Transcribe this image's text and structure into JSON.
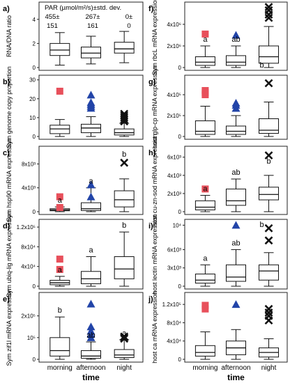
{
  "chart_data": {
    "type": "box",
    "x_categories": [
      "morning",
      "afternoon",
      "night"
    ],
    "x_axis_label": "time",
    "series_markers": [
      {
        "time": "morning",
        "marker": "square",
        "color": "#e8505b"
      },
      {
        "time": "afternoon",
        "marker": "triangle",
        "color": "#2244a8"
      },
      {
        "time": "night",
        "marker": "x",
        "color": "#111111"
      }
    ],
    "par_header": {
      "title": "PAR (µmol/m²/s)±std. dev.",
      "morning": [
        "455±",
        "151"
      ],
      "afternoon": [
        "267±",
        "161"
      ],
      "night": [
        "0±",
        "0"
      ]
    },
    "panels": [
      {
        "id": "a)",
        "ylabel": "RNA/DNA ratio",
        "yticks": [
          "0",
          "2",
          "4"
        ],
        "ylim": [
          0,
          5.2
        ],
        "boxes": [
          {
            "whislo": 0.2,
            "q1": 1.0,
            "med": 1.45,
            "q3": 2.0,
            "whishi": 2.9,
            "outliers": []
          },
          {
            "whislo": 0.3,
            "q1": 0.8,
            "med": 1.2,
            "q3": 1.7,
            "whishi": 2.6,
            "outliers": []
          },
          {
            "whislo": 0.4,
            "q1": 1.2,
            "med": 1.55,
            "q3": 2.1,
            "whishi": 3.0,
            "outliers": []
          }
        ],
        "letters": [
          "",
          "",
          ""
        ]
      },
      {
        "id": "b)",
        "ylabel": "Sym genome copy proportion",
        "yticks": [
          "0",
          "10",
          "20",
          "30"
        ],
        "ylim": [
          0,
          31
        ],
        "boxes": [
          {
            "whislo": 0,
            "q1": 1.5,
            "med": 4.0,
            "q3": 6.0,
            "whishi": 9.0,
            "outliers": [
              24
            ]
          },
          {
            "whislo": 0,
            "q1": 2.0,
            "med": 4.5,
            "q3": 6.5,
            "whishi": 10.5,
            "outliers": [
              15,
              16,
              17,
              18,
              22
            ]
          },
          {
            "whislo": 0,
            "q1": 0.8,
            "med": 2.0,
            "q3": 4.0,
            "whishi": 7.0,
            "outliers": [
              8,
              9,
              10,
              11,
              12
            ]
          }
        ],
        "letters": [
          "",
          "",
          ""
        ]
      },
      {
        "id": "c)",
        "ylabel": "Sym hsp90 mRNA expression",
        "yticks": [
          "0",
          "4x10³",
          "8x10³"
        ],
        "ylim": [
          0,
          10500
        ],
        "boxes": [
          {
            "whislo": 0,
            "q1": 150,
            "med": 300,
            "q3": 500,
            "whishi": 800,
            "outliers": [
              700,
              2500
            ]
          },
          {
            "whislo": 0,
            "q1": 200,
            "med": 500,
            "q3": 1500,
            "whishi": 4000,
            "outliers": [
              2500,
              4500
            ]
          },
          {
            "whislo": 0,
            "q1": 800,
            "med": 2000,
            "q3": 3500,
            "whishi": 5500,
            "outliers": [
              8200
            ]
          }
        ],
        "letters": [
          "a",
          "a",
          "b"
        ]
      },
      {
        "id": "d)",
        "ylabel": "Sym ubiq-lig mRNA expression",
        "yticks": [
          "0",
          "4x10⁴",
          "8x10⁴",
          "1.2x10⁵"
        ],
        "ylim": [
          0,
          130000
        ],
        "boxes": [
          {
            "whislo": 0,
            "q1": 3000,
            "med": 7000,
            "q3": 12000,
            "whishi": 20000,
            "outliers": [
              34000,
              55000
            ]
          },
          {
            "whislo": 0,
            "q1": 5000,
            "med": 15000,
            "q3": 30000,
            "whishi": 60000,
            "outliers": []
          },
          {
            "whislo": 0,
            "q1": 15000,
            "med": 35000,
            "q3": 60000,
            "whishi": 110000,
            "outliers": []
          }
        ],
        "letters": [
          "a",
          "a",
          "b"
        ]
      },
      {
        "id": "e)",
        "ylabel": "Sym zif1l mRNA expression",
        "yticks": [
          "0",
          "10⁵",
          "2x10⁵"
        ],
        "ylim": [
          0,
          295000
        ],
        "boxes": [
          {
            "whislo": 0,
            "q1": 15000,
            "med": 40000,
            "q3": 100000,
            "whishi": 195000,
            "outliers": []
          },
          {
            "whislo": 0,
            "q1": 5000,
            "med": 15000,
            "q3": 40000,
            "whishi": 80000,
            "outliers": [
              100000,
              115000,
              130000,
              150000,
              255000
            ]
          },
          {
            "whislo": 0,
            "q1": 8000,
            "med": 20000,
            "q3": 45000,
            "whishi": 90000,
            "outliers": [
              95000,
              100000,
              105000
            ]
          }
        ],
        "letters": [
          "b",
          "ab",
          "a"
        ]
      },
      {
        "id": "f)",
        "ylabel": "Sym rbcL mRNA expression",
        "yticks": [
          "0",
          "2x10⁶",
          "4x10⁶"
        ],
        "ylim": [
          0,
          5800000
        ],
        "boxes": [
          {
            "whislo": 0,
            "q1": 200000,
            "med": 500000,
            "q3": 1000000,
            "whishi": 2000000,
            "outliers": [
              3100000
            ]
          },
          {
            "whislo": 0,
            "q1": 200000,
            "med": 500000,
            "q3": 1100000,
            "whishi": 2000000,
            "outliers": [
              3000000
            ]
          },
          {
            "whislo": 0,
            "q1": 400000,
            "med": 1000000,
            "q3": 2000000,
            "whishi": 3800000,
            "outliers": [
              4600000,
              4900000,
              5300000,
              5600000
            ]
          }
        ],
        "letters": [
          "a",
          "ab",
          "b"
        ]
      },
      {
        "id": "g)",
        "ylabel": "host glp-cp mRNA expression",
        "yticks": [
          "0",
          "2x10⁵",
          "4x10⁵"
        ],
        "ylim": [
          0,
          560000
        ],
        "boxes": [
          {
            "whislo": 0,
            "q1": 20000,
            "med": 50000,
            "q3": 150000,
            "whishi": 290000,
            "outliers": [
              400000,
              420000,
              440000
            ]
          },
          {
            "whislo": 0,
            "q1": 20000,
            "med": 50000,
            "q3": 100000,
            "whishi": 200000,
            "outliers": [
              270000,
              300000,
              320000
            ]
          },
          {
            "whislo": 0,
            "q1": 30000,
            "med": 60000,
            "q3": 170000,
            "whishi": 330000,
            "outliers": [
              510000
            ]
          }
        ],
        "letters": [
          "",
          "",
          ""
        ]
      },
      {
        "id": "h)",
        "ylabel": "host cu-zn-sod mRNA expression",
        "yticks": [
          "0",
          "2x10³",
          "4x10³",
          "6x10³"
        ],
        "ylim": [
          0,
          6900
        ],
        "boxes": [
          {
            "whislo": 0,
            "q1": 200,
            "med": 500,
            "q3": 1200,
            "whishi": 1800,
            "outliers": [
              2500
            ]
          },
          {
            "whislo": 0,
            "q1": 700,
            "med": 1200,
            "q3": 2500,
            "whishi": 3600,
            "outliers": []
          },
          {
            "whislo": 0,
            "q1": 1300,
            "med": 1900,
            "q3": 2700,
            "whishi": 4000,
            "outliers": [
              6200
            ]
          }
        ],
        "letters": [
          "a",
          "ab",
          "b"
        ]
      },
      {
        "id": "i)",
        "ylabel": "host lectin mRNA expression",
        "yticks": [
          "0",
          "3x10³",
          "6x10³",
          "10⁴"
        ],
        "ylim": [
          0,
          10500
        ],
        "boxes": [
          {
            "whislo": 0,
            "q1": 500,
            "med": 1000,
            "q3": 2000,
            "whishi": 3500,
            "outliers": []
          },
          {
            "whislo": 0,
            "q1": 800,
            "med": 1500,
            "q3": 3500,
            "whishi": 6000,
            "outliers": [
              10000
            ]
          },
          {
            "whislo": 0,
            "q1": 1000,
            "med": 2500,
            "q3": 3500,
            "whishi": 5500,
            "outliers": [
              7500,
              9500
            ]
          }
        ],
        "letters": [
          "a",
          "ab",
          "b"
        ]
      },
      {
        "id": "j)",
        "ylabel": "host ca mRNA expression",
        "yticks": [
          "0",
          "4x10⁴",
          "8x10⁴",
          "1.2x10⁵"
        ],
        "ylim": [
          0,
          140000
        ],
        "boxes": [
          {
            "whislo": 0,
            "q1": 7000,
            "med": 15000,
            "q3": 30000,
            "whishi": 60000,
            "outliers": [
              110000,
              118000
            ]
          },
          {
            "whislo": 0,
            "q1": 10000,
            "med": 25000,
            "q3": 40000,
            "whishi": 65000,
            "outliers": [
              120000
            ]
          },
          {
            "whislo": 0,
            "q1": 5000,
            "med": 15000,
            "q3": 25000,
            "whishi": 45000,
            "outliers": [
              85000,
              95000,
              102000,
              110000
            ]
          }
        ],
        "letters": [
          "",
          "",
          ""
        ]
      }
    ]
  }
}
